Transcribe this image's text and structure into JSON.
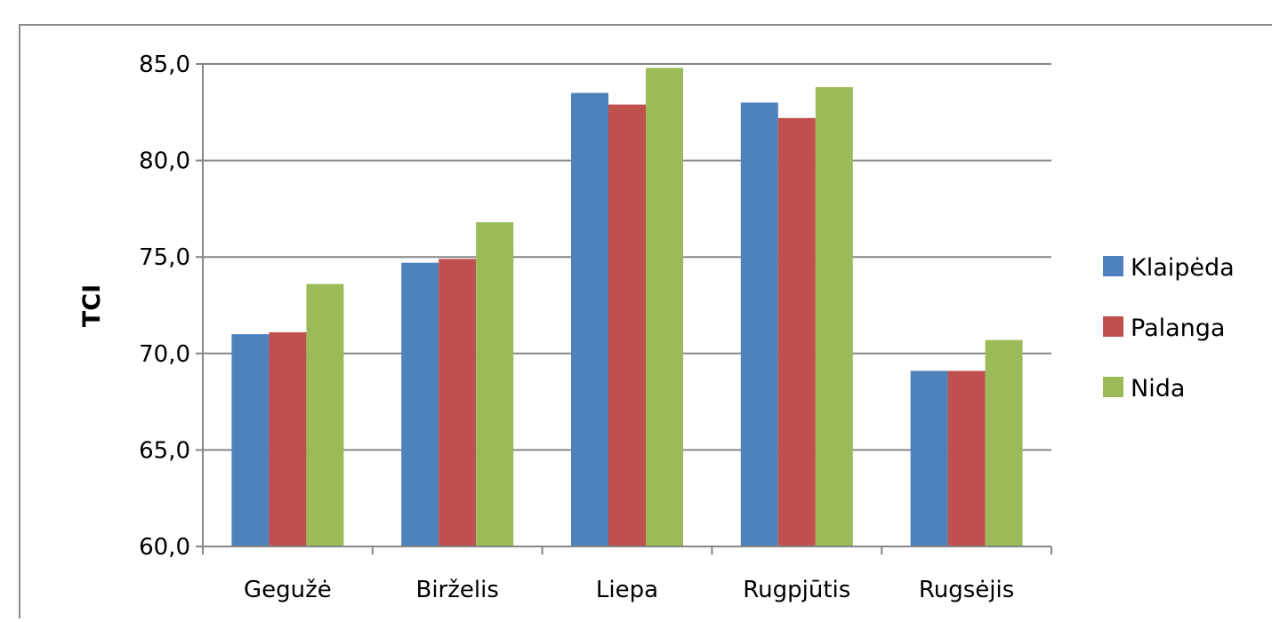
{
  "chart_data": {
    "type": "bar",
    "title": "",
    "xlabel": "",
    "ylabel": "TCI",
    "ylim": [
      60,
      85
    ],
    "yticks": [
      "60,0",
      "65,0",
      "70,0",
      "75,0",
      "80,0",
      "85,0"
    ],
    "ytick_values": [
      60,
      65,
      70,
      75,
      80,
      85
    ],
    "grid": true,
    "legend_position": "right",
    "categories": [
      "Gegužė",
      "Birželis",
      "Liepa",
      "Rugpjūtis",
      "Rugsėjis"
    ],
    "series": [
      {
        "name": "Klaipėda",
        "color": "#4F81BD",
        "values": [
          71.0,
          74.7,
          83.5,
          83.0,
          69.1
        ]
      },
      {
        "name": "Palanga",
        "color": "#C0504D",
        "values": [
          71.1,
          74.9,
          82.9,
          82.2,
          69.1
        ]
      },
      {
        "name": "Nida",
        "color": "#9BBB59",
        "values": [
          73.6,
          76.8,
          84.8,
          83.8,
          70.7
        ]
      }
    ]
  }
}
